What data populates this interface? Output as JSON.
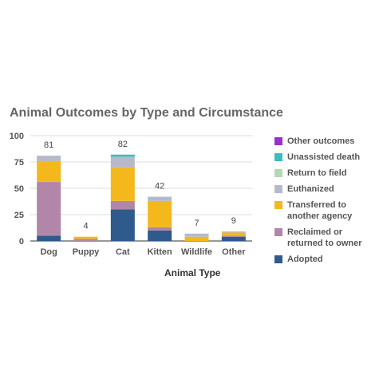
{
  "chart_data": {
    "type": "bar",
    "stacked": true,
    "title": "Animal Outcomes by Type and Circumstance",
    "xlabel": "Animal Type",
    "ylabel": "",
    "ylim": [
      0,
      100
    ],
    "yticks": [
      0,
      25,
      50,
      75,
      100
    ],
    "grid": true,
    "legend_position": "right",
    "categories": [
      "Dog",
      "Puppy",
      "Cat",
      "Kitten",
      "Wildlife",
      "Other"
    ],
    "totals": [
      81,
      4,
      82,
      42,
      7,
      9
    ],
    "series": [
      {
        "name": "Adopted",
        "color": "#2e5a8c",
        "values": [
          5,
          0,
          30,
          10,
          0,
          4
        ]
      },
      {
        "name": "Reclaimed or returned to owner",
        "color": "#b286a8",
        "values": [
          51,
          2,
          8,
          3,
          0,
          1
        ]
      },
      {
        "name": "Transferred to another agency",
        "color": "#f4b81c",
        "values": [
          19,
          2,
          32,
          25,
          4,
          3
        ]
      },
      {
        "name": "Euthanized",
        "color": "#b6b9cc",
        "values": [
          6,
          0,
          10,
          4,
          3,
          1
        ]
      },
      {
        "name": "Return to field",
        "color": "#b3d8b3",
        "values": [
          0,
          0,
          0,
          0,
          0,
          0
        ]
      },
      {
        "name": "Unassisted death",
        "color": "#3fbcc0",
        "values": [
          0,
          0,
          2,
          0,
          0,
          0
        ]
      },
      {
        "name": "Other outcomes",
        "color": "#9b30c8",
        "values": [
          0,
          0,
          0,
          0,
          0,
          0
        ]
      }
    ]
  },
  "legend": {
    "items": [
      {
        "lines": [
          "Other outcomes"
        ],
        "color": "#9b30c8"
      },
      {
        "lines": [
          "Unassisted death"
        ],
        "color": "#3fbcc0"
      },
      {
        "lines": [
          "Return to field"
        ],
        "color": "#b3d8b3"
      },
      {
        "lines": [
          "Euthanized"
        ],
        "color": "#b6b9cc"
      },
      {
        "lines": [
          "Transferred to",
          "another agency"
        ],
        "color": "#f4b81c"
      },
      {
        "lines": [
          "Reclaimed or",
          "returned to owner"
        ],
        "color": "#b286a8"
      },
      {
        "lines": [
          "Adopted"
        ],
        "color": "#2e5a8c"
      }
    ]
  }
}
